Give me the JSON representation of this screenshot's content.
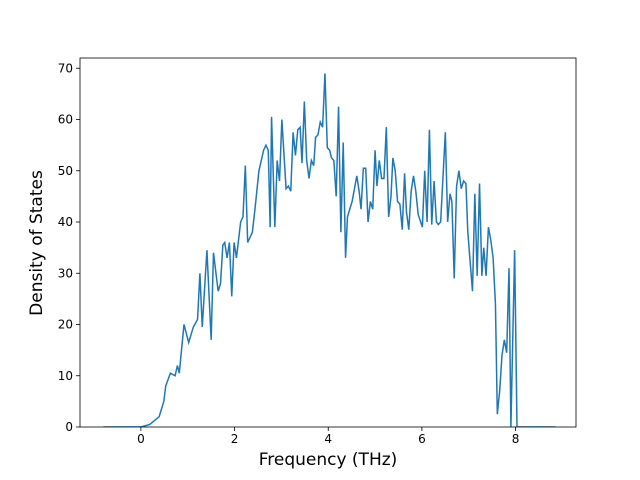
{
  "chart_data": {
    "type": "line",
    "xlabel": "Frequency (THz)",
    "ylabel": "Density of States",
    "xlim": [
      -1.3,
      9.29
    ],
    "ylim": [
      0,
      72
    ],
    "xticks": [
      0,
      2,
      4,
      6,
      8
    ],
    "yticks": [
      0,
      10,
      20,
      30,
      40,
      50,
      60,
      70
    ],
    "series": [
      {
        "color": "#1f77b4",
        "x": [
          -0.8,
          0,
          0.19,
          0.39,
          0.49,
          0.53,
          0.63,
          0.73,
          0.78,
          0.82,
          0.92,
          1.02,
          1.12,
          1.21,
          1.26,
          1.31,
          1.41,
          1.5,
          1.55,
          1.65,
          1.7,
          1.75,
          1.79,
          1.84,
          1.89,
          1.94,
          1.99,
          2.04,
          2.13,
          2.18,
          2.23,
          2.28,
          2.38,
          2.43,
          2.52,
          2.62,
          2.67,
          2.72,
          2.76,
          2.79,
          2.86,
          2.91,
          2.96,
          3.01,
          3.1,
          3.15,
          3.2,
          3.25,
          3.3,
          3.35,
          3.4,
          3.44,
          3.49,
          3.54,
          3.59,
          3.64,
          3.69,
          3.73,
          3.78,
          3.83,
          3.88,
          3.93,
          3.98,
          4.03,
          4.07,
          4.12,
          4.17,
          4.22,
          4.27,
          4.32,
          4.37,
          4.41,
          4.51,
          4.61,
          4.66,
          4.7,
          4.75,
          4.8,
          4.85,
          4.9,
          4.95,
          5.0,
          5.04,
          5.09,
          5.14,
          5.19,
          5.24,
          5.29,
          5.34,
          5.38,
          5.43,
          5.48,
          5.53,
          5.58,
          5.63,
          5.67,
          5.72,
          5.77,
          5.82,
          5.87,
          5.92,
          6.01,
          6.06,
          6.11,
          6.16,
          6.21,
          6.26,
          6.31,
          6.35,
          6.4,
          6.5,
          6.55,
          6.6,
          6.64,
          6.69,
          6.74,
          6.79,
          6.84,
          6.89,
          6.94,
          6.98,
          7.08,
          7.13,
          7.18,
          7.23,
          7.28,
          7.32,
          7.37,
          7.42,
          7.47,
          7.52,
          7.57,
          7.61,
          7.66,
          7.71,
          7.76,
          7.81,
          7.86,
          7.9,
          7.98,
          8.03,
          8.3,
          8.85
        ],
        "values": [
          0,
          0,
          0.5,
          2,
          5,
          8,
          10.5,
          10,
          12,
          10.5,
          20,
          16.5,
          19.5,
          21,
          30,
          19.5,
          34.5,
          17,
          34,
          26.5,
          28,
          35.5,
          36,
          33,
          36,
          25.5,
          36,
          33,
          40,
          41,
          51,
          36,
          38,
          42,
          50,
          54,
          55,
          54,
          39,
          60.5,
          39,
          52,
          48,
          60,
          46.5,
          47,
          46,
          57.5,
          53,
          58,
          58.5,
          51.5,
          63.5,
          52,
          48.5,
          52,
          51,
          56.5,
          57,
          59.5,
          58.5,
          69,
          54.5,
          54,
          52.5,
          52,
          45,
          62.5,
          38,
          55.5,
          33,
          41,
          44,
          49,
          46,
          42.5,
          50.5,
          50.5,
          40,
          44,
          42.5,
          54,
          47,
          52,
          48.5,
          48.5,
          58.5,
          41,
          45,
          52.5,
          50,
          44,
          43.5,
          38.5,
          49.5,
          42,
          38.5,
          46,
          49,
          46,
          41.5,
          39,
          50,
          40,
          58,
          39.5,
          48,
          40,
          39.5,
          40,
          57.5,
          40,
          45.5,
          44,
          29,
          47,
          50,
          46.5,
          48,
          47.5,
          38,
          26.5,
          45.5,
          29.5,
          47.5,
          29.5,
          35,
          29.5,
          39,
          36.5,
          33,
          24,
          2.5,
          7,
          14,
          17,
          14.5,
          31,
          0,
          34.5,
          0,
          0,
          0
        ]
      }
    ]
  }
}
